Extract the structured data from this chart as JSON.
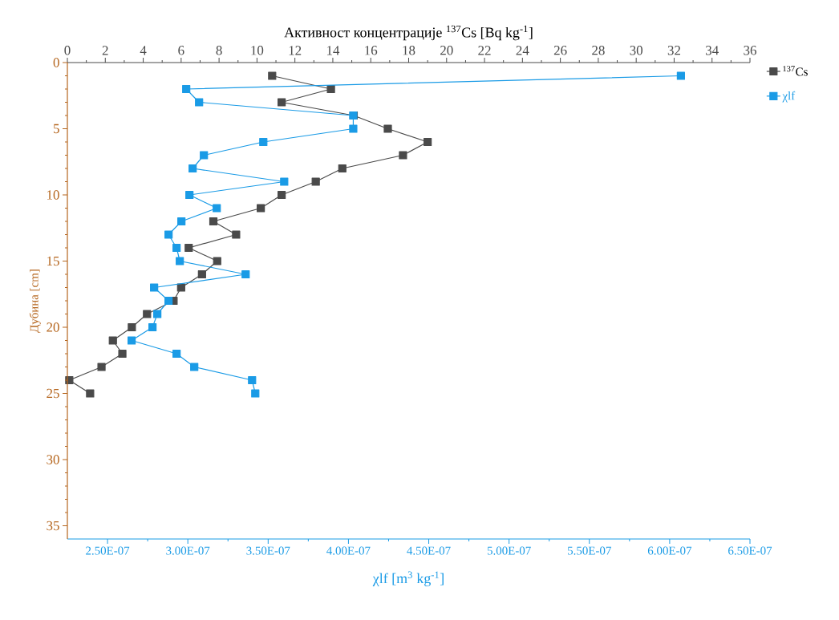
{
  "chart_data": {
    "type": "line",
    "orientation": "horizontal",
    "x2label": "Активност концентрације $^{137}$Cs [Bq kg$^{-1}$]",
    "xlabel": "χlf [m$^{3}$ kg$^{-1}$]",
    "ylabel": "Дубина [cm]",
    "x": [
      1,
      2,
      3,
      4,
      5,
      6,
      7,
      8,
      9,
      10,
      11,
      12,
      13,
      14,
      15,
      16,
      17,
      18,
      19,
      20,
      21,
      22,
      23,
      24,
      25
    ],
    "series": [
      {
        "name": "$^{137}$Cs",
        "color": "#4a4a4a",
        "axis": "x2",
        "values": [
          10.8,
          13.9,
          11.3,
          15.1,
          16.9,
          19.0,
          17.7,
          14.5,
          13.1,
          11.3,
          10.2,
          7.7,
          8.9,
          6.4,
          7.9,
          7.1,
          6.0,
          5.6,
          4.2,
          3.4,
          2.4,
          2.9,
          1.8,
          0.1,
          1.2
        ]
      },
      {
        "name": "χlf",
        "color": "#1a9be6",
        "values": [
          6.07e-07,
          2.99e-07,
          3.07e-07,
          4.03e-07,
          4.03e-07,
          3.47e-07,
          3.1e-07,
          3.03e-07,
          3.6e-07,
          3.01e-07,
          3.18e-07,
          2.96e-07,
          2.88e-07,
          2.93e-07,
          2.95e-07,
          3.36e-07,
          2.79e-07,
          2.88e-07,
          2.81e-07,
          2.78e-07,
          2.65e-07,
          2.93e-07,
          3.04e-07,
          3.4e-07,
          3.42e-07
        ]
      }
    ],
    "x2lim": [
      0,
      36
    ],
    "x2ticks": [
      0,
      2,
      4,
      6,
      8,
      10,
      12,
      14,
      16,
      18,
      20,
      22,
      24,
      26,
      28,
      30,
      32,
      34,
      36
    ],
    "xlim": [
      2.25e-07,
      6.5e-07
    ],
    "xticks": [
      {
        "value": 2.5e-07,
        "label": "2.50E-07"
      },
      {
        "value": 3e-07,
        "label": "3.00E-07"
      },
      {
        "value": 3.5e-07,
        "label": "3.50E-07"
      },
      {
        "value": 4e-07,
        "label": "4.00E-07"
      },
      {
        "value": 4.5e-07,
        "label": "4.50E-07"
      },
      {
        "value": 5e-07,
        "label": "5.00E-07"
      },
      {
        "value": 5.5e-07,
        "label": "5.50E-07"
      },
      {
        "value": 6e-07,
        "label": "6.00E-07"
      },
      {
        "value": 6.5e-07,
        "label": "6.50E-07"
      }
    ],
    "ylim": [
      36,
      0
    ],
    "yticks": [
      0,
      5,
      10,
      15,
      20,
      25,
      30,
      35
    ],
    "marker": "square",
    "line_style": "solid",
    "legend": "top right"
  }
}
